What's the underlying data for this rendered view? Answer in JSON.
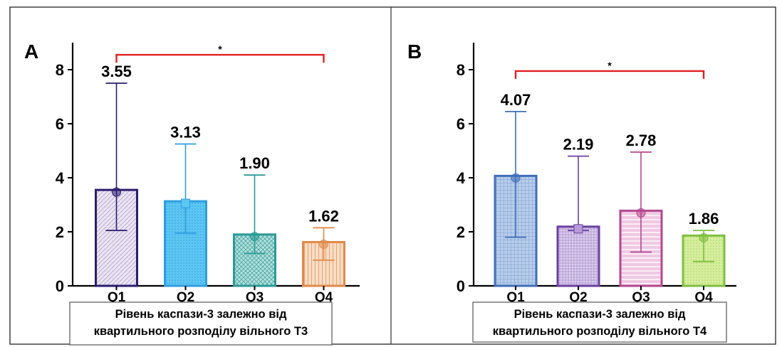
{
  "chart_data": [
    {
      "type": "bar",
      "panel_label": "A",
      "categories": [
        "Q1",
        "Q2",
        "Q3",
        "Q4"
      ],
      "values": [
        3.55,
        3.13,
        1.9,
        1.62
      ],
      "value_labels": [
        "3.55",
        "3.13",
        "1.90",
        "1.62"
      ],
      "error_low": [
        2.05,
        1.95,
        1.2,
        0.95
      ],
      "error_high": [
        7.5,
        5.25,
        4.1,
        2.15
      ],
      "ylim": [
        0,
        9
      ],
      "yticks": [
        "0",
        "2",
        "4",
        "6",
        "8"
      ],
      "significance": {
        "from": "Q1",
        "to": "Q4",
        "bracket_value": 8.55,
        "label": "*"
      },
      "caption_lines": [
        "Рівень каспази-3 залежно від",
        "квартильного розподілу вільного Т3"
      ],
      "colors": [
        "#2b1d6e",
        "#2e9ee0",
        "#2a9a96",
        "#e08a4a"
      ],
      "fills": [
        "#ece6f3",
        "#5ec6f2",
        "#b7e0dd",
        "#f8ddc6"
      ],
      "bracket_color": "#e02020"
    },
    {
      "type": "bar",
      "panel_label": "B",
      "categories": [
        "Q1",
        "Q2",
        "Q3",
        "Q4"
      ],
      "values": [
        4.07,
        2.19,
        2.78,
        1.86
      ],
      "value_labels": [
        "4.07",
        "2.19",
        "2.78",
        "1.86"
      ],
      "error_low": [
        1.8,
        2.05,
        1.25,
        0.9
      ],
      "error_high": [
        6.45,
        4.8,
        4.95,
        2.05
      ],
      "ylim": [
        0,
        9
      ],
      "yticks": [
        "0",
        "2",
        "4",
        "6",
        "8"
      ],
      "significance": {
        "from": "Q1",
        "to": "Q4",
        "bracket_value": 7.95,
        "label": "*"
      },
      "caption_lines": [
        "Рівень каспази-3 залежно від",
        "квартильного розподілу вільного Т4"
      ],
      "colors": [
        "#3f6eb8",
        "#6a3fa0",
        "#b4478f",
        "#7fbf3f"
      ],
      "fills": [
        "#b8cdea",
        "#ddd0ee",
        "#f0c8e2",
        "#d6ee9e"
      ],
      "bracket_color": "#e02020"
    }
  ]
}
